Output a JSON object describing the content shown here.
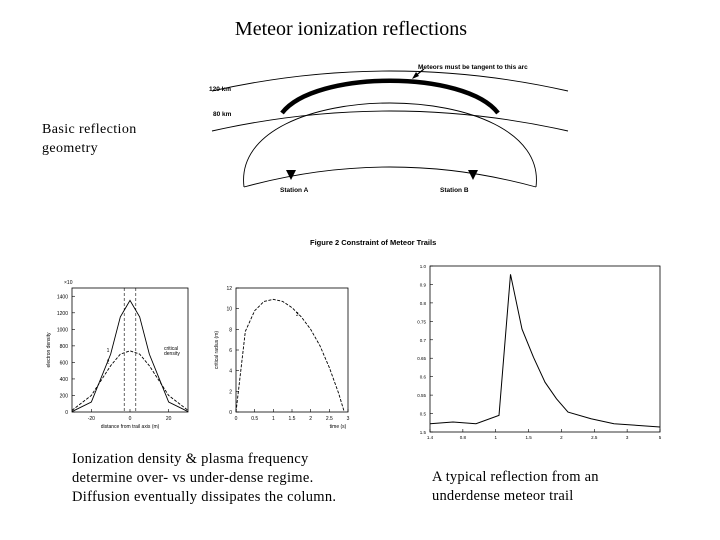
{
  "slide": {
    "title": "Meteor ionization reflections",
    "caption_geometry": [
      "Basic reflection",
      "geometry"
    ],
    "caption_density": [
      "Ionization density & plasma frequency",
      "determine over- vs under-dense regime.",
      "Diffusion eventually dissipates the column."
    ],
    "caption_reflection": [
      "A typical reflection from an",
      "underdense meteor trail"
    ]
  },
  "geometry_figure": {
    "label_120": "120 km",
    "label_80": "80 km",
    "arc_label": "Meteors must be tangent to this arc",
    "station_a": "Station A",
    "station_b": "Station B",
    "figure_caption": "Figure 2 Constraint of Meteor Trails"
  },
  "chart_data": [
    {
      "type": "line",
      "title": "",
      "ylabel": "electron density",
      "xlabel": "distance from trail axis (m)",
      "y_exponent_label": "×10",
      "yticks": [
        "1400",
        "1200",
        "1000",
        "800",
        "600",
        "400",
        "200",
        "0"
      ],
      "xticks": [
        "-20",
        "0",
        "20"
      ],
      "xlim": [
        -30,
        30
      ],
      "ylim": [
        0,
        1500
      ],
      "annotation": [
        "critical",
        "density"
      ],
      "series": [
        {
          "name": "1",
          "x": [
            -30,
            -20,
            -10,
            -5,
            0,
            5,
            10,
            20,
            30
          ],
          "values": [
            5,
            120,
            700,
            1150,
            1350,
            1150,
            700,
            120,
            5
          ]
        },
        {
          "name": "2",
          "x": [
            -30,
            -20,
            -10,
            -5,
            0,
            5,
            10,
            20,
            30
          ],
          "values": [
            20,
            200,
            560,
            700,
            740,
            700,
            560,
            200,
            20
          ]
        }
      ]
    },
    {
      "type": "line",
      "title": "",
      "ylabel": "critical radius (m)",
      "xlabel": "time (s)",
      "yticks": [
        "12",
        "10",
        "8",
        "6",
        "4",
        "2",
        "0"
      ],
      "xticks": [
        "0",
        "0.5",
        "1",
        "1.5",
        "2",
        "2.5",
        "3"
      ],
      "xlim": [
        0,
        3
      ],
      "ylim": [
        0,
        12
      ],
      "series": [
        {
          "name": "3",
          "x": [
            0,
            0.25,
            0.5,
            0.75,
            1,
            1.25,
            1.5,
            1.75,
            2,
            2.25,
            2.5,
            2.75,
            2.9
          ],
          "values": [
            0,
            7.8,
            9.8,
            10.7,
            10.9,
            10.7,
            10.1,
            9.2,
            8.0,
            6.4,
            4.3,
            1.8,
            0
          ]
        }
      ]
    },
    {
      "type": "line",
      "title": "",
      "yticks": [
        "1.0",
        "0.9",
        "0.8",
        "0.75",
        "0.7",
        "0.65",
        "0.6",
        "0.55",
        "0.5",
        "1.5"
      ],
      "xticks": [
        "1.4",
        "0.8",
        "1",
        "1.5",
        "2",
        "2.5",
        "3",
        "5"
      ],
      "series": [
        {
          "name": "reflection",
          "x": [
            0,
            0.1,
            0.2,
            0.3,
            0.35,
            0.4,
            0.45,
            0.5,
            0.55,
            0.6,
            0.7,
            0.8,
            0.9,
            1.0
          ],
          "values": [
            0.05,
            0.06,
            0.05,
            0.1,
            0.95,
            0.62,
            0.45,
            0.3,
            0.2,
            0.12,
            0.08,
            0.05,
            0.04,
            0.03
          ]
        }
      ]
    }
  ]
}
